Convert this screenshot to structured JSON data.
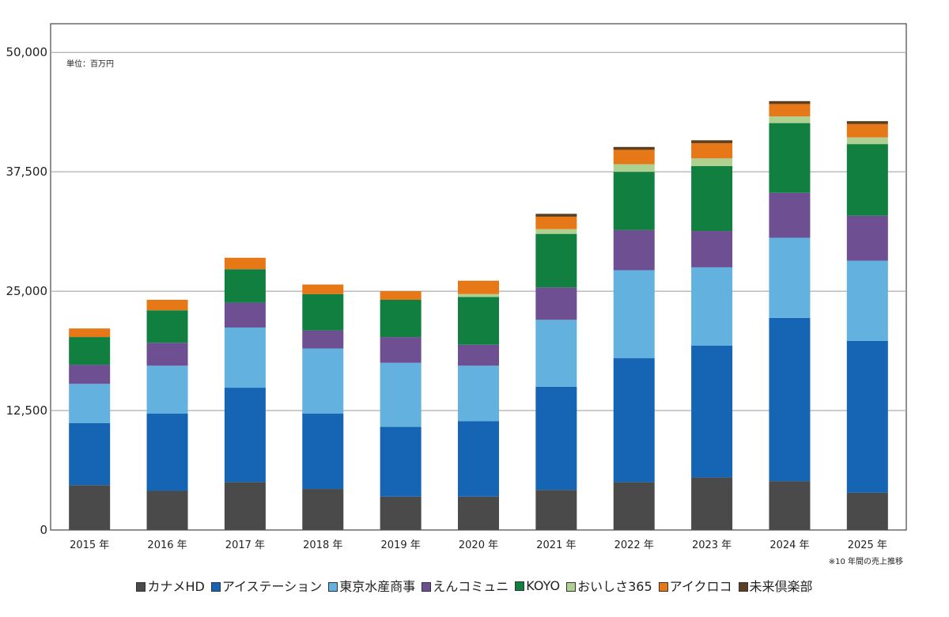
{
  "chart_data": {
    "type": "bar",
    "stacked": true,
    "unit_note": "単位：百万円",
    "footnote": "※10 年間の売上推移",
    "categories": [
      "2015 年",
      "2016 年",
      "2017 年",
      "2018 年",
      "2019 年",
      "2020 年",
      "2021 年",
      "2022 年",
      "2023 年",
      "2024 年",
      "2025 年"
    ],
    "ylim": [
      0,
      53000
    ],
    "yticks": [
      0,
      12500,
      25000,
      37500,
      50000
    ],
    "ytick_labels": [
      "0",
      "12,500",
      "25,000",
      "37,500",
      "50,000"
    ],
    "grid": true,
    "legend_position": "bottom",
    "series": [
      {
        "name": "カナメHD",
        "color": "#4a4a4a",
        "values": [
          4700,
          4100,
          5000,
          4300,
          3500,
          3500,
          4200,
          5000,
          5500,
          5100,
          3900
        ]
      },
      {
        "name": "アイステーション",
        "color": "#1565b4",
        "values": [
          6500,
          8100,
          9900,
          7900,
          7300,
          7900,
          10800,
          13000,
          13800,
          17100,
          15900
        ]
      },
      {
        "name": "東京水産商事",
        "color": "#63b1de",
        "values": [
          4100,
          5000,
          6300,
          6800,
          6700,
          5800,
          7000,
          9200,
          8200,
          8400,
          8400
        ]
      },
      {
        "name": "えんコミュニ",
        "color": "#6e4f91",
        "values": [
          2000,
          2400,
          2600,
          1900,
          2700,
          2200,
          3400,
          4200,
          3800,
          4700,
          4700
        ]
      },
      {
        "name": "KOYO",
        "color": "#117f3f",
        "values": [
          2900,
          3400,
          3500,
          3800,
          3900,
          5000,
          5600,
          6100,
          6800,
          7300,
          7500
        ]
      },
      {
        "name": "おいしさ365",
        "color": "#aed091",
        "values": [
          0,
          0,
          0,
          0,
          0,
          300,
          500,
          800,
          800,
          700,
          700
        ]
      },
      {
        "name": "アイクロコ",
        "color": "#e77817",
        "values": [
          900,
          1100,
          1200,
          1000,
          900,
          1400,
          1300,
          1500,
          1600,
          1300,
          1400
        ]
      },
      {
        "name": "未来倶楽部",
        "color": "#5b3f1e",
        "values": [
          0,
          0,
          0,
          0,
          0,
          0,
          300,
          300,
          300,
          300,
          300
        ]
      }
    ]
  }
}
